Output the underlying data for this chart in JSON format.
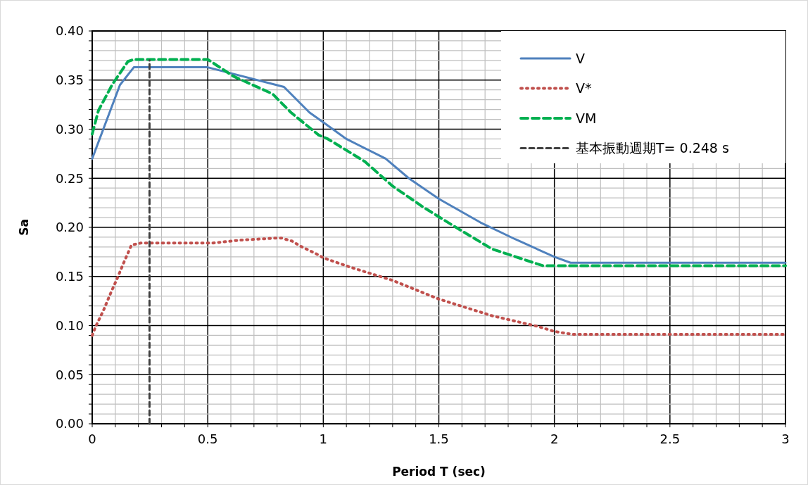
{
  "chart_data": {
    "type": "line",
    "xlabel": "Period T (sec)",
    "ylabel": "Sa",
    "xlim": [
      0,
      3
    ],
    "ylim": [
      0,
      0.4
    ],
    "xticks": [
      0,
      {
        "value": 0.1,
        "label": null
      },
      {
        "value": 0.2,
        "label": null
      },
      {
        "value": 0.3,
        "label": null
      },
      {
        "value": 0.4,
        "label": null
      },
      0.5,
      {
        "value": 0.6,
        "label": null
      },
      {
        "value": 0.7,
        "label": null
      },
      {
        "value": 0.8,
        "label": null
      },
      {
        "value": 0.9,
        "label": null
      },
      1,
      {
        "value": 1.1,
        "label": null
      },
      {
        "value": 1.2,
        "label": null
      },
      {
        "value": 1.3,
        "label": null
      },
      {
        "value": 1.4,
        "label": null
      },
      1.5,
      {
        "value": 1.6,
        "label": null
      },
      {
        "value": 1.7,
        "label": null
      },
      {
        "value": 1.8,
        "label": null
      },
      {
        "value": 1.9,
        "label": null
      },
      2,
      {
        "value": 2.1,
        "label": null
      },
      {
        "value": 2.2,
        "label": null
      },
      {
        "value": 2.3,
        "label": null
      },
      {
        "value": 2.4,
        "label": null
      },
      2.5,
      {
        "value": 2.6,
        "label": null
      },
      {
        "value": 2.7,
        "label": null
      },
      {
        "value": 2.8,
        "label": null
      },
      {
        "value": 2.9,
        "label": null
      },
      3
    ],
    "yticks": [
      {
        "value": 0,
        "label": "0.00"
      },
      {
        "value": 0.01,
        "label": null
      },
      {
        "value": 0.02,
        "label": null
      },
      {
        "value": 0.03,
        "label": null
      },
      {
        "value": 0.04,
        "label": null
      },
      {
        "value": 0.05,
        "label": "0.05"
      },
      {
        "value": 0.06,
        "label": null
      },
      {
        "value": 0.07,
        "label": null
      },
      {
        "value": 0.08,
        "label": null
      },
      {
        "value": 0.09,
        "label": null
      },
      {
        "value": 0.1,
        "label": "0.10"
      },
      {
        "value": 0.11,
        "label": null
      },
      {
        "value": 0.12,
        "label": null
      },
      {
        "value": 0.13,
        "label": null
      },
      {
        "value": 0.14,
        "label": null
      },
      {
        "value": 0.15,
        "label": "0.15"
      },
      {
        "value": 0.16,
        "label": null
      },
      {
        "value": 0.17,
        "label": null
      },
      {
        "value": 0.18,
        "label": null
      },
      {
        "value": 0.19,
        "label": null
      },
      {
        "value": 0.2,
        "label": "0.20"
      },
      {
        "value": 0.21,
        "label": null
      },
      {
        "value": 0.22,
        "label": null
      },
      {
        "value": 0.23,
        "label": null
      },
      {
        "value": 0.24,
        "label": null
      },
      {
        "value": 0.25,
        "label": "0.25"
      },
      {
        "value": 0.26,
        "label": null
      },
      {
        "value": 0.27,
        "label": null
      },
      {
        "value": 0.28,
        "label": null
      },
      {
        "value": 0.29,
        "label": null
      },
      {
        "value": 0.3,
        "label": "0.30"
      },
      {
        "value": 0.31,
        "label": null
      },
      {
        "value": 0.32,
        "label": null
      },
      {
        "value": 0.33,
        "label": null
      },
      {
        "value": 0.34,
        "label": null
      },
      {
        "value": 0.35,
        "label": "0.35"
      },
      {
        "value": 0.36,
        "label": null
      },
      {
        "value": 0.37,
        "label": null
      },
      {
        "value": 0.38,
        "label": null
      },
      {
        "value": 0.39,
        "label": null
      },
      {
        "value": 0.4,
        "label": "0.40"
      }
    ],
    "grid": true,
    "legend": "top right",
    "series": [
      {
        "name": "V",
        "color": "#4f81bd",
        "line_style": "solid",
        "x": [
          0,
          0.12,
          0.18,
          0.5,
          0.83,
          0.94,
          1.0,
          1.1,
          1.27,
          1.37,
          1.5,
          1.68,
          1.83,
          2.0,
          2.07,
          3
        ],
        "values": [
          0.27,
          0.345,
          0.363,
          0.363,
          0.343,
          0.317,
          0.307,
          0.29,
          0.27,
          0.25,
          0.229,
          0.205,
          0.188,
          0.17,
          0.164,
          0.164
        ]
      },
      {
        "name": "V*",
        "color": "#c0504d",
        "line_style": "dotted",
        "x": [
          0,
          0.015,
          0.048,
          0.078,
          0.11,
          0.14,
          0.17,
          0.21,
          0.52,
          0.64,
          0.79,
          0.82,
          0.865,
          0.9,
          0.97,
          1.0,
          1.11,
          1.15,
          1.3,
          1.5,
          1.73,
          1.93,
          2.0,
          2.08,
          3
        ],
        "values": [
          0.09,
          0.099,
          0.115,
          0.132,
          0.149,
          0.166,
          0.182,
          0.184,
          0.184,
          0.187,
          0.189,
          0.189,
          0.186,
          0.181,
          0.173,
          0.169,
          0.16,
          0.157,
          0.146,
          0.127,
          0.11,
          0.099,
          0.094,
          0.091,
          0.091
        ]
      },
      {
        "name": "VM",
        "color": "#00b050",
        "line_style": "dashed",
        "x": [
          0,
          0.027,
          0.088,
          0.155,
          0.18,
          0.5,
          0.61,
          0.78,
          0.86,
          0.98,
          1.02,
          1.18,
          1.3,
          1.43,
          1.56,
          1.73,
          1.91,
          1.95,
          3
        ],
        "values": [
          0.295,
          0.319,
          0.346,
          0.369,
          0.371,
          0.371,
          0.354,
          0.336,
          0.317,
          0.294,
          0.29,
          0.267,
          0.242,
          0.221,
          0.202,
          0.178,
          0.164,
          0.161,
          0.161
        ]
      },
      {
        "name": "基本振動週期T= 0.248 s",
        "color": "#404040",
        "line_style": "dashed",
        "x": [
          0.248,
          0.248
        ],
        "values": [
          0,
          0.37
        ]
      }
    ]
  }
}
